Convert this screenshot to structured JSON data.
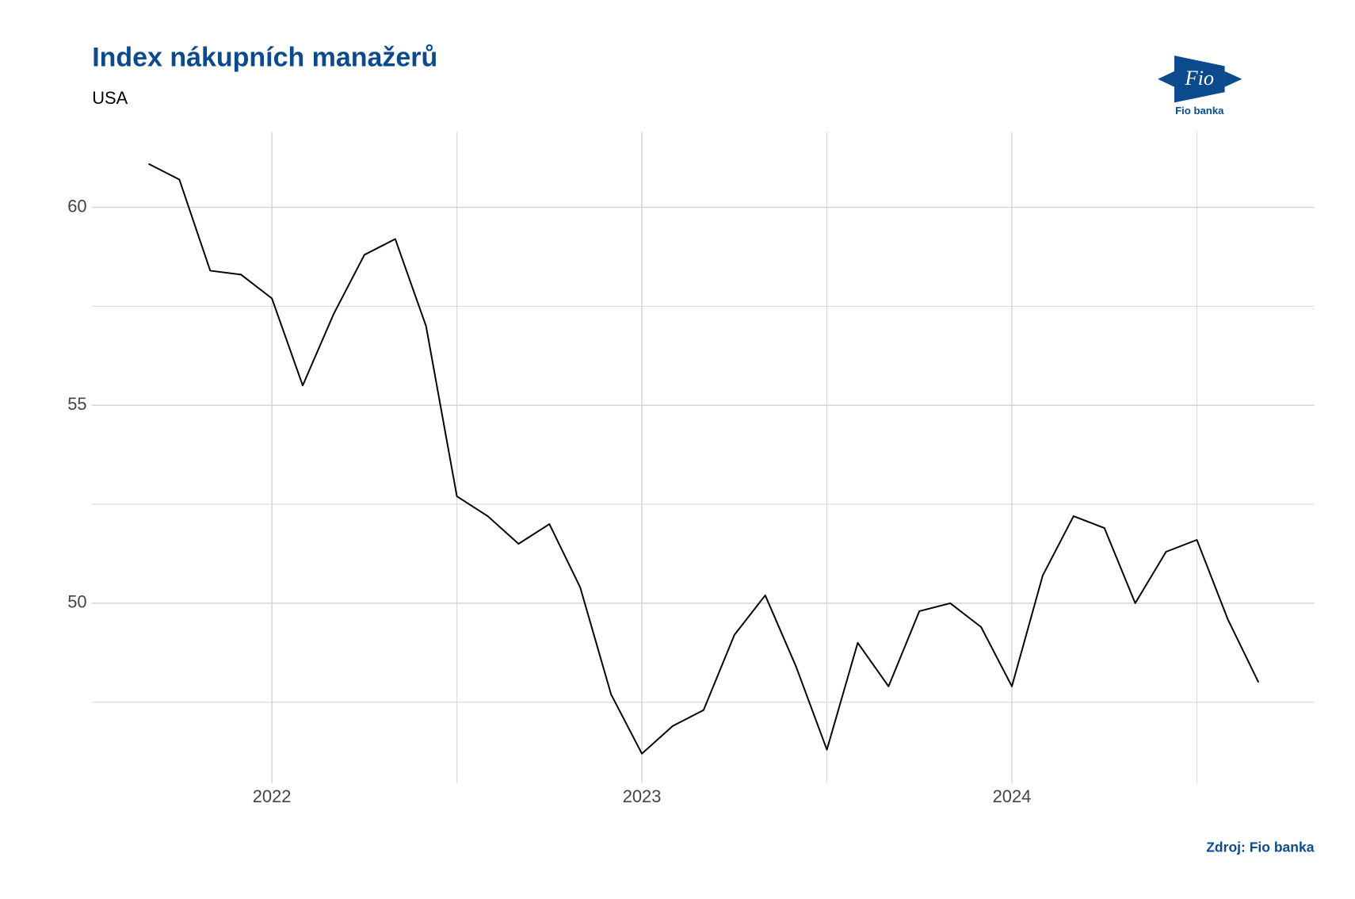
{
  "chart_data": {
    "type": "line",
    "title": "Index nákupních manažerů",
    "subtitle": "USA",
    "source": "Zdroj: Fio banka",
    "logo": {
      "mark": "Fio",
      "caption": "Fio banka"
    },
    "x": [
      "2021-09",
      "2021-10",
      "2021-11",
      "2021-12",
      "2022-01",
      "2022-02",
      "2022-03",
      "2022-04",
      "2022-05",
      "2022-06",
      "2022-07",
      "2022-08",
      "2022-09",
      "2022-10",
      "2022-11",
      "2022-12",
      "2023-01",
      "2023-02",
      "2023-03",
      "2023-04",
      "2023-05",
      "2023-06",
      "2023-07",
      "2023-08",
      "2023-09",
      "2023-10",
      "2023-11",
      "2023-12",
      "2024-01",
      "2024-02",
      "2024-03",
      "2024-04",
      "2024-05",
      "2024-06",
      "2024-07",
      "2024-08",
      "2024-09"
    ],
    "series": [
      {
        "color": "#000000",
        "values": [
          61.1,
          60.7,
          58.4,
          58.3,
          57.7,
          55.5,
          57.3,
          58.8,
          59.2,
          57.0,
          52.7,
          52.2,
          51.5,
          52.0,
          50.4,
          47.7,
          46.2,
          46.9,
          47.3,
          49.2,
          50.2,
          48.4,
          46.3,
          49.0,
          47.9,
          49.8,
          50.0,
          49.4,
          47.9,
          50.7,
          52.2,
          51.9,
          50.0,
          51.3,
          51.6,
          49.6,
          48.0
        ]
      }
    ],
    "xlim": [
      2021.514,
      2024.817
    ],
    "xticks": [
      2022,
      2023,
      2024
    ],
    "xminor": [
      2022.5,
      2023.5,
      2024.5
    ],
    "ylim": [
      45.46,
      61.9
    ],
    "yticks": [
      50,
      55,
      60
    ],
    "yminor": [
      47.5,
      52.5,
      57.5
    ],
    "grid": true
  }
}
